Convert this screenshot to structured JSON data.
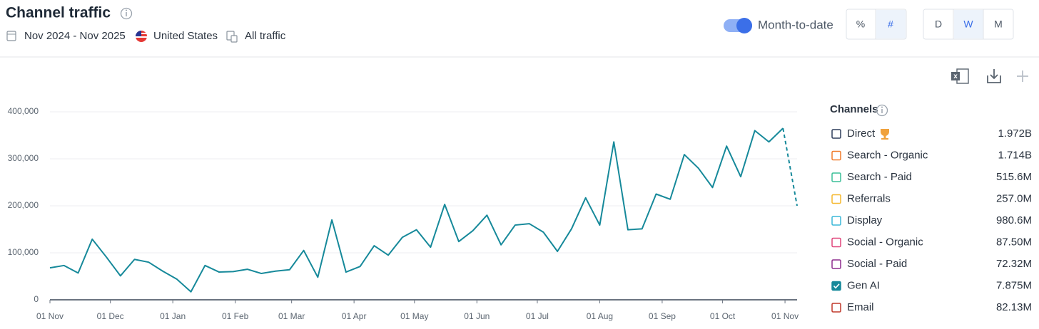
{
  "header": {
    "title": "Channel traffic",
    "date_range": "Nov 2024 - Nov 2025",
    "country": "United States",
    "traffic": "All traffic",
    "toggle": "Month-to-date",
    "metric_buttons": [
      "%",
      "#"
    ],
    "granularity_buttons": [
      "D",
      "W",
      "M"
    ]
  },
  "legend_title": "Channels",
  "channels": [
    {
      "name": "Direct",
      "total": "1.972B",
      "color": "#2f3e5c",
      "checked": false
    },
    {
      "name": "Search - Organic",
      "total": "1.714B",
      "color": "#f07b2b",
      "checked": false
    },
    {
      "name": "Search - Paid",
      "total": "515.6M",
      "color": "#3cbf98",
      "checked": false
    },
    {
      "name": "Referrals",
      "total": "257.0M",
      "color": "#f5b82e",
      "checked": false
    },
    {
      "name": "Display",
      "total": "980.6M",
      "color": "#3bb8d8",
      "checked": false
    },
    {
      "name": "Social - Organic",
      "total": "87.50M",
      "color": "#e0457b",
      "checked": false
    },
    {
      "name": "Social - Paid",
      "total": "72.32M",
      "color": "#8e2d8e",
      "checked": false
    },
    {
      "name": "Gen AI",
      "total": "7.875M",
      "color": "#16899a",
      "checked": true
    },
    {
      "name": "Email",
      "total": "82.13M",
      "color": "#c0392b",
      "checked": false
    }
  ],
  "chart_data": {
    "type": "line",
    "x": [
      0,
      7,
      14,
      21,
      28,
      35,
      42,
      49,
      56,
      63,
      70,
      77,
      84,
      91,
      98,
      105,
      112,
      119,
      126,
      133,
      140,
      147,
      154,
      161,
      168,
      175,
      182,
      189,
      196,
      203,
      210,
      217,
      224,
      231,
      238,
      245,
      252,
      259,
      266,
      273,
      280,
      287,
      294,
      301,
      308,
      315,
      322,
      329,
      336,
      343,
      350,
      357,
      364,
      371
    ],
    "series": [
      {
        "color": "#16899a",
        "values": [
          68000,
          73000,
          57000,
          129000,
          91000,
          51000,
          86000,
          80000,
          61000,
          44000,
          17000,
          73000,
          59000,
          60000,
          65000,
          56000,
          61000,
          64000,
          105000,
          48000,
          170000,
          59000,
          71000,
          115000,
          95000,
          133000,
          149000,
          112000,
          203000,
          124000,
          147000,
          180000,
          117000,
          159000,
          162000,
          144000,
          103000,
          151000,
          217000,
          159000,
          336000,
          149000,
          151000,
          225000,
          214000,
          309000,
          280000,
          239000,
          327000,
          262000,
          360000,
          336000,
          365000,
          200000
        ]
      }
    ],
    "xlim": [
      0,
      371
    ],
    "xticks": [
      {
        "value": 0,
        "label": "01 Nov"
      },
      {
        "value": 30,
        "label": "01 Dec"
      },
      {
        "value": 61,
        "label": "01 Jan"
      },
      {
        "value": 92,
        "label": "01 Feb"
      },
      {
        "value": 120,
        "label": "01 Mar"
      },
      {
        "value": 151,
        "label": "01 Apr"
      },
      {
        "value": 181,
        "label": "01 May"
      },
      {
        "value": 212,
        "label": "01 Jun"
      },
      {
        "value": 242,
        "label": "01 Jul"
      },
      {
        "value": 273,
        "label": "01 Aug"
      },
      {
        "value": 304,
        "label": "01 Sep"
      },
      {
        "value": 334,
        "label": "01 Oct"
      },
      {
        "value": 365,
        "label": "01 Nov"
      }
    ],
    "ylim": [
      0,
      400000
    ],
    "yticks": [
      0,
      {
        "value": 100000,
        "label": "100,000"
      },
      {
        "value": 200000,
        "label": "200,000"
      },
      {
        "value": 300000,
        "label": "300,000"
      },
      {
        "value": 400000,
        "label": "400,000"
      }
    ],
    "grid": true
  }
}
